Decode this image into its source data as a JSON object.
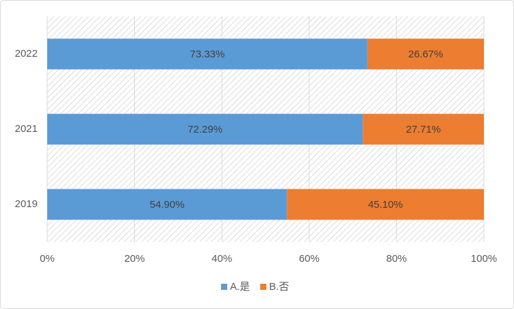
{
  "chart_data": {
    "type": "bar",
    "orientation": "horizontal",
    "stacked": true,
    "categories": [
      "2019",
      "2021",
      "2022"
    ],
    "series": [
      {
        "name": "A.是",
        "color": "#5b9bd5",
        "values": [
          54.9,
          72.29,
          73.33
        ],
        "value_labels": [
          "54.90%",
          "72.29%",
          "73.33%"
        ]
      },
      {
        "name": "B.否",
        "color": "#ed7d31",
        "values": [
          45.1,
          27.71,
          26.67
        ],
        "value_labels": [
          "45.10%",
          "27.71%",
          "26.67%"
        ]
      }
    ],
    "xlim": [
      0,
      100
    ],
    "xticks": [
      {
        "value": 0,
        "label": "0%"
      },
      {
        "value": 20,
        "label": "20%"
      },
      {
        "value": 40,
        "label": "40%"
      },
      {
        "value": 60,
        "label": "60%"
      },
      {
        "value": 80,
        "label": "80%"
      },
      {
        "value": 100,
        "label": "100%"
      }
    ],
    "grid": true,
    "legend": "bottom"
  }
}
